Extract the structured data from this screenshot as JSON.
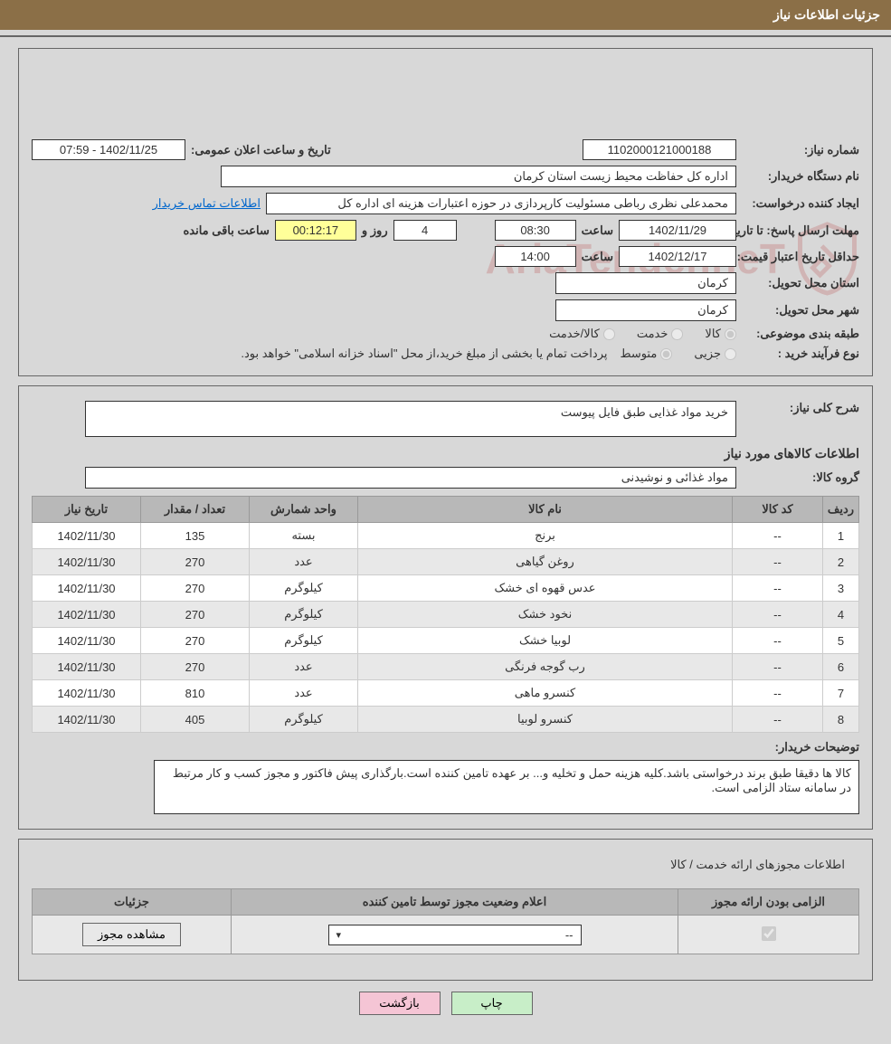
{
  "header": {
    "title": "جزئیات اطلاعات نیاز"
  },
  "info": {
    "need_no_label": "شماره نیاز:",
    "need_no": "1102000121000188",
    "announce_label": "تاریخ و ساعت اعلان عمومی:",
    "announce_val": "1402/11/25 - 07:59",
    "buyer_org_label": "نام دستگاه خریدار:",
    "buyer_org": "اداره کل حفاظت محیط زیست استان کرمان",
    "requester_label": "ایجاد کننده درخواست:",
    "requester": "محمدعلی نظری رباطی مسئولیت کارپردازی در حوزه اعتبارات هزینه ای اداره کل",
    "contact_link": "اطلاعات تماس خریدار",
    "deadline_label": "مهلت ارسال پاسخ:",
    "to_date_label": "تا تاریخ:",
    "deadline_date": "1402/11/29",
    "time_label": "ساعت",
    "deadline_time": "08:30",
    "days_val": "4",
    "days_and_label": "روز و",
    "countdown": "00:12:17",
    "remain_label": "ساعت باقی مانده",
    "validity_label": "حداقل تاریخ اعتبار قیمت:",
    "validity_date": "1402/12/17",
    "validity_time": "14:00",
    "province_label": "استان محل تحویل:",
    "province": "کرمان",
    "city_label": "شهر محل تحویل:",
    "city": "کرمان",
    "category_label": "طبقه بندی موضوعی:",
    "cat_goods": "کالا",
    "cat_service": "خدمت",
    "cat_goods_service": "کالا/خدمت",
    "process_label": "نوع فرآیند خرید :",
    "proc_partial": "جزیی",
    "proc_medium": "متوسط",
    "payment_note": "پرداخت تمام یا بخشی از مبلغ خرید،از محل \"اسناد خزانه اسلامی\" خواهد بود."
  },
  "desc": {
    "need_desc_label": "شرح کلی نیاز:",
    "need_desc": "خرید مواد غذایی طبق فایل پیوست",
    "goods_info_head": "اطلاعات کالاهای مورد نیاز",
    "goods_group_label": "گروه کالا:",
    "goods_group": "مواد غذائی و نوشیدنی",
    "buyer_notes_label": "توضیحات خریدار:",
    "buyer_notes": "کالا ها دقیقا طبق برند درخواستی باشد.کلیه هزینه حمل و تخلیه و... بر عهده تامین کننده است.بارگذاری پیش فاکتور و مجوز کسب و کار مرتبط در سامانه ستاد الزامی است."
  },
  "table": {
    "cols": {
      "row": "ردیف",
      "code": "کد کالا",
      "name": "نام کالا",
      "unit": "واحد شمارش",
      "qty": "تعداد / مقدار",
      "date": "تاریخ نیاز"
    },
    "rows": [
      {
        "n": "1",
        "code": "--",
        "name": "برنج",
        "unit": "بسته",
        "qty": "135",
        "date": "1402/11/30"
      },
      {
        "n": "2",
        "code": "--",
        "name": "روغن گیاهی",
        "unit": "عدد",
        "qty": "270",
        "date": "1402/11/30"
      },
      {
        "n": "3",
        "code": "--",
        "name": "عدس قهوه ای خشک",
        "unit": "کیلوگرم",
        "qty": "270",
        "date": "1402/11/30"
      },
      {
        "n": "4",
        "code": "--",
        "name": "نخود خشک",
        "unit": "کیلوگرم",
        "qty": "270",
        "date": "1402/11/30"
      },
      {
        "n": "5",
        "code": "--",
        "name": "لوبیا خشک",
        "unit": "کیلوگرم",
        "qty": "270",
        "date": "1402/11/30"
      },
      {
        "n": "6",
        "code": "--",
        "name": "رب گوجه فرنگی",
        "unit": "عدد",
        "qty": "270",
        "date": "1402/11/30"
      },
      {
        "n": "7",
        "code": "--",
        "name": "کنسرو ماهی",
        "unit": "عدد",
        "qty": "810",
        "date": "1402/11/30"
      },
      {
        "n": "8",
        "code": "--",
        "name": "کنسرو لوبیا",
        "unit": "کیلوگرم",
        "qty": "405",
        "date": "1402/11/30"
      }
    ],
    "col_widths": {
      "row": "40px",
      "code": "100px",
      "name": "auto",
      "unit": "120px",
      "qty": "120px",
      "date": "120px"
    }
  },
  "perm": {
    "panel_title": "اطلاعات مجوزهای ارائه خدمت / کالا",
    "cols": {
      "mandatory": "الزامی بودن ارائه مجوز",
      "status": "اعلام وضعیت مجوز توسط تامین کننده",
      "details": "جزئیات"
    },
    "status_val": "--",
    "view_btn": "مشاهده مجوز"
  },
  "actions": {
    "print": "چاپ",
    "back": "بازگشت"
  },
  "colors": {
    "header_bg": "#8b6f47",
    "highlight": "#ffff99",
    "btn_print": "#c8eec8",
    "btn_back": "#f5c5d5"
  }
}
